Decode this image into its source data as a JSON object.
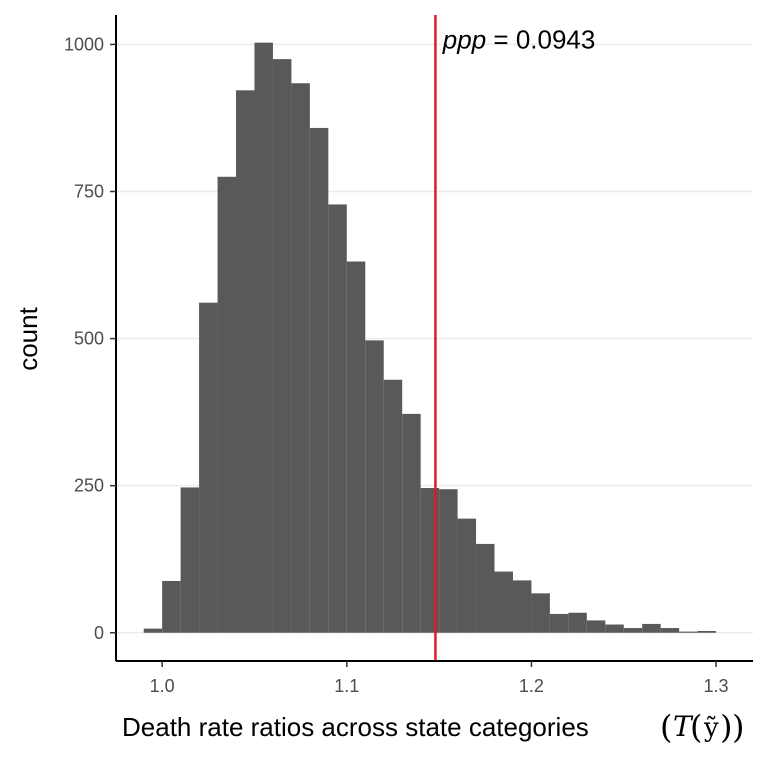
{
  "chart_data": {
    "type": "bar",
    "title": "",
    "xlabel": "Death rate ratios across state categories",
    "xlabel_math": {
      "open": "(",
      "func": "T",
      "inner_open": "(",
      "var": "ỹ",
      "inner_close": ")",
      "close": ")"
    },
    "ylabel": "count",
    "xlim": [
      0.975,
      1.32
    ],
    "ylim": [
      -48,
      1050
    ],
    "x_ticks": [
      1.0,
      1.1,
      1.2,
      1.3
    ],
    "x_tick_labels": [
      "1.0",
      "1.1",
      "1.2",
      "1.3"
    ],
    "y_ticks": [
      0,
      250,
      500,
      750,
      1000
    ],
    "y_tick_labels": [
      "0",
      "250",
      "500",
      "750",
      "1000"
    ],
    "grid": {
      "major_y": true,
      "major_x": false
    },
    "bin_width": 0.01,
    "bins": [
      {
        "x": 0.995,
        "count": 7
      },
      {
        "x": 1.005,
        "count": 88
      },
      {
        "x": 1.015,
        "count": 247
      },
      {
        "x": 1.025,
        "count": 561
      },
      {
        "x": 1.035,
        "count": 775
      },
      {
        "x": 1.045,
        "count": 922
      },
      {
        "x": 1.055,
        "count": 1003
      },
      {
        "x": 1.065,
        "count": 975
      },
      {
        "x": 1.075,
        "count": 934
      },
      {
        "x": 1.085,
        "count": 858
      },
      {
        "x": 1.095,
        "count": 728
      },
      {
        "x": 1.105,
        "count": 631
      },
      {
        "x": 1.115,
        "count": 497
      },
      {
        "x": 1.125,
        "count": 430
      },
      {
        "x": 1.135,
        "count": 372
      },
      {
        "x": 1.145,
        "count": 246
      },
      {
        "x": 1.155,
        "count": 244
      },
      {
        "x": 1.165,
        "count": 194
      },
      {
        "x": 1.175,
        "count": 151
      },
      {
        "x": 1.185,
        "count": 104
      },
      {
        "x": 1.195,
        "count": 89
      },
      {
        "x": 1.205,
        "count": 67
      },
      {
        "x": 1.215,
        "count": 32
      },
      {
        "x": 1.225,
        "count": 34
      },
      {
        "x": 1.235,
        "count": 21
      },
      {
        "x": 1.245,
        "count": 14
      },
      {
        "x": 1.255,
        "count": 8
      },
      {
        "x": 1.265,
        "count": 15
      },
      {
        "x": 1.275,
        "count": 8
      },
      {
        "x": 1.285,
        "count": 2
      },
      {
        "x": 1.295,
        "count": 3
      }
    ],
    "bar_color": "#595959",
    "reference_line": {
      "x": 1.148,
      "color": "#e31a1c"
    },
    "annotation": {
      "italic": "ppp",
      "text": " = 0.0943",
      "x": 1.152,
      "y": 1003
    }
  }
}
